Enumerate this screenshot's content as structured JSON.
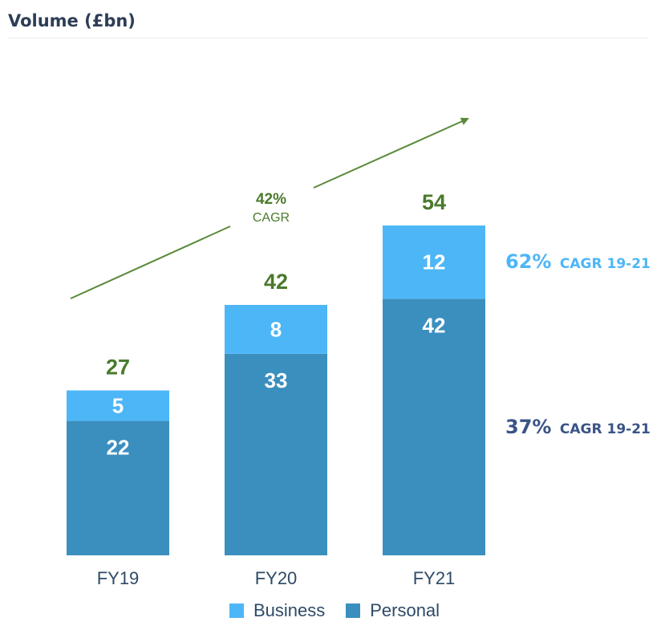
{
  "title": "Volume (£bn)",
  "colors": {
    "business": "#4db6f7",
    "personal": "#3b8fbe",
    "arrow": "#5a8a3a",
    "cagr_business": "#4db6f7",
    "cagr_personal": "#3a5488"
  },
  "chart_data": {
    "type": "bar",
    "stacked": true,
    "categories": [
      "FY19",
      "FY20",
      "FY21"
    ],
    "series": [
      {
        "name": "Personal",
        "values": [
          22,
          33,
          42
        ]
      },
      {
        "name": "Business",
        "values": [
          5,
          8,
          12
        ]
      }
    ],
    "totals": [
      "27",
      "42",
      "54"
    ],
    "segment_labels": {
      "Personal": [
        "22",
        "33",
        "42"
      ],
      "Business": [
        "5",
        "8",
        "12"
      ]
    },
    "ylim": [
      0,
      54
    ],
    "xlabel": "",
    "ylabel": "",
    "legend": [
      "Business",
      "Personal"
    ],
    "annotations": {
      "overall_cagr_value": "42%",
      "overall_cagr_label": "CAGR",
      "business_cagr_value": "62%",
      "business_cagr_label": "CAGR 19-21",
      "personal_cagr_value": "37%",
      "personal_cagr_label": "CAGR 19-21"
    }
  }
}
